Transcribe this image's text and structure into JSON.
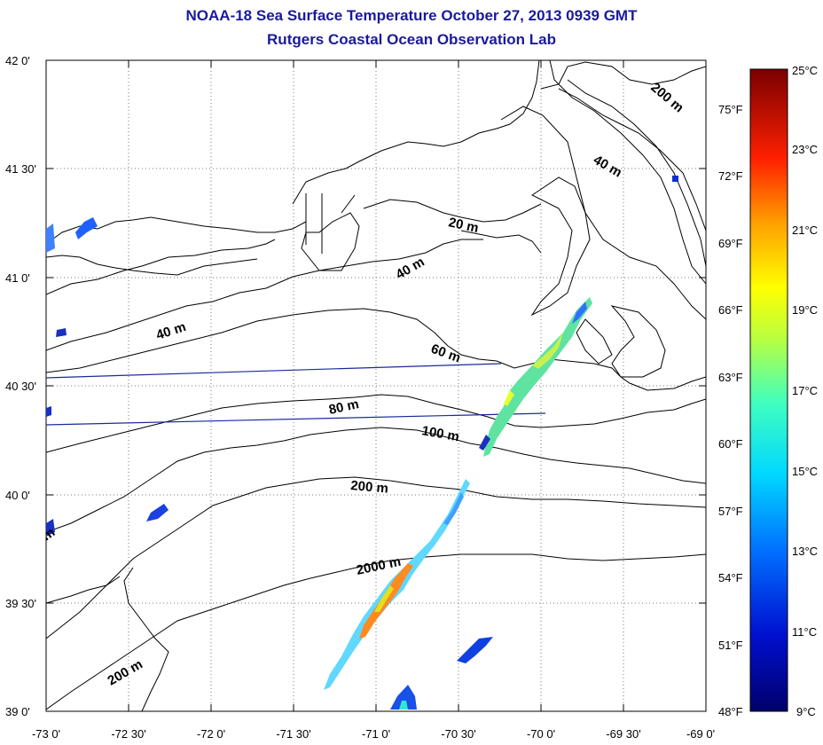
{
  "title": "NOAA-18 Sea Surface Temperature October 27, 2013 0939 GMT",
  "subtitle": "Rutgers Coastal Ocean Observation Lab",
  "lat_labels": [
    "42 0'",
    "41 30'",
    "41 0'",
    "40 30'",
    "40 0'",
    "39 30'",
    "39 0'"
  ],
  "lon_labels": [
    "-73 0'",
    "-72 30'",
    "-72 0'",
    "-71 30'",
    "-71 0'",
    "-70 30'",
    "-70 0'",
    "-69 30'",
    "-69 0'"
  ],
  "contour_labels": [
    "200 m",
    "40 m",
    "20 m",
    "40 m",
    "40 m",
    "60 m",
    "80 m",
    "100 m",
    "200 m",
    "2000 m",
    "200 m",
    "m"
  ],
  "colorbar": {
    "celsius_labels": [
      "25°C",
      "23°C",
      "21°C",
      "19°C",
      "17°C",
      "15°C",
      "13°C",
      "11°C",
      "9°C"
    ],
    "fahrenheit_labels": [
      "75°F",
      "72°F",
      "69°F",
      "66°F",
      "63°F",
      "60°F",
      "57°F",
      "54°F",
      "51°F",
      "48°F"
    ]
  }
}
